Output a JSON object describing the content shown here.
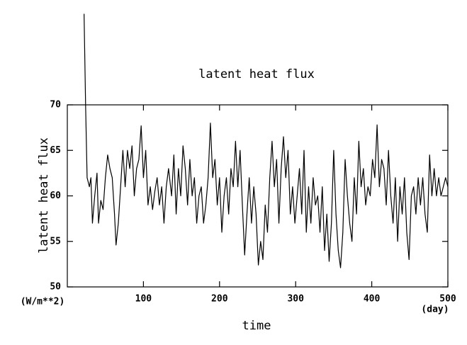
{
  "chart_data": {
    "type": "line",
    "title": "latent heat flux",
    "y_label": "latent heat flux",
    "x_label": "time",
    "y_unit": "(W/m**2)",
    "x_unit": "(day)",
    "xlim": [
      0,
      500
    ],
    "xticks": [
      100,
      200,
      300,
      400,
      500
    ],
    "ylim": [
      50,
      70
    ],
    "yticks": [
      50,
      55,
      60,
      65,
      70
    ],
    "color": "#000000",
    "x": [
      22,
      24,
      26,
      29,
      31,
      33,
      36,
      39,
      41,
      44,
      47,
      50,
      53,
      56,
      59,
      62,
      64,
      67,
      70,
      73,
      76,
      79,
      82,
      85,
      88,
      91,
      94,
      97,
      100,
      103,
      106,
      109,
      112,
      115,
      118,
      121,
      124,
      127,
      130,
      133,
      137,
      140,
      143,
      146,
      149,
      152,
      155,
      158,
      161,
      164,
      167,
      170,
      173,
      176,
      179,
      182,
      185,
      188,
      191,
      194,
      197,
      200,
      203,
      206,
      209,
      212,
      215,
      218,
      221,
      224,
      227,
      230,
      233,
      236,
      239,
      242,
      245,
      248,
      251,
      254,
      257,
      260,
      263,
      266,
      269,
      272,
      275,
      278,
      281,
      284,
      287,
      290,
      293,
      296,
      299,
      302,
      305,
      308,
      311,
      314,
      317,
      320,
      323,
      326,
      329,
      332,
      335,
      338,
      341,
      344,
      347,
      350,
      353,
      356,
      359,
      362,
      365,
      368,
      371,
      374,
      377,
      380,
      383,
      386,
      389,
      392,
      395,
      398,
      401,
      404,
      407,
      410,
      413,
      416,
      419,
      422,
      425,
      428,
      431,
      434,
      437,
      440,
      443,
      446,
      449,
      452,
      455,
      458,
      461,
      464,
      467,
      470,
      473,
      476,
      479,
      482,
      485,
      488,
      491,
      494,
      497,
      500
    ],
    "values": [
      80,
      70,
      62,
      61,
      62,
      57,
      60,
      62.5,
      57,
      59.5,
      58.5,
      62,
      64.5,
      63,
      62,
      58,
      54.6,
      57,
      61,
      65,
      61,
      65,
      63,
      65.5,
      60,
      63,
      64,
      67.7,
      62,
      65,
      59,
      61,
      58.5,
      60.5,
      62,
      59,
      61,
      57,
      61,
      63,
      60,
      64.5,
      58,
      63,
      60,
      65.5,
      63,
      59,
      64,
      60,
      62,
      57,
      60,
      61,
      57,
      59,
      62,
      68,
      62,
      64,
      59,
      62,
      56,
      60,
      62,
      58,
      63,
      61,
      66,
      61,
      65,
      59,
      53.5,
      58,
      62,
      57,
      61,
      58,
      52.4,
      55,
      53,
      59,
      56,
      62,
      66,
      61,
      64,
      57,
      63,
      66.5,
      62,
      65,
      58,
      61,
      57,
      60,
      63,
      58,
      65,
      56,
      61,
      57,
      62,
      59,
      60,
      56,
      61,
      54,
      58,
      52.8,
      57,
      65,
      58,
      54,
      52.1,
      56,
      64,
      60,
      57,
      55,
      62,
      58,
      66,
      61,
      63,
      59,
      61,
      60,
      64,
      62,
      67.8,
      61,
      64,
      63,
      59,
      65,
      60,
      57,
      62,
      55,
      61,
      58,
      62,
      56,
      53,
      60,
      61,
      58,
      62,
      59,
      62,
      58,
      56,
      64.5,
      60,
      63,
      60,
      62,
      60,
      61,
      62,
      61
    ]
  }
}
